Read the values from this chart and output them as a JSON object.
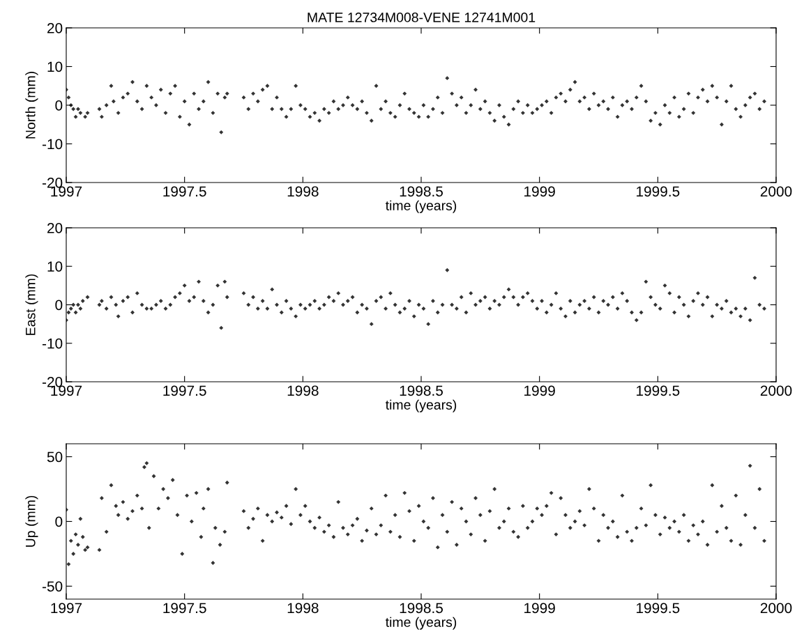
{
  "chart_data": [
    {
      "type": "scatter",
      "title": "MATE 12734M008-VENE 12741M001",
      "xlabel": "time (years)",
      "ylabel": "North (mm)",
      "marker": "diamond",
      "grid": false,
      "xlim": [
        1997,
        2000
      ],
      "ylim": [
        -20,
        20
      ],
      "xticks": [
        1997,
        1997.5,
        1998,
        1998.5,
        1999,
        1999.5,
        2000
      ],
      "yticks": [
        -20,
        -10,
        0,
        10,
        20
      ],
      "series": [
        {
          "color": "#333333",
          "x": [
            1997.0,
            1997.01,
            1997.02,
            1997.03,
            1997.04,
            1997.05,
            1997.06,
            1997.08,
            1997.09,
            1997.14,
            1997.15,
            1997.17,
            1997.19,
            1997.2,
            1997.22,
            1997.24,
            1997.26,
            1997.28,
            1997.3,
            1997.32,
            1997.34,
            1997.36,
            1997.38,
            1997.4,
            1997.42,
            1997.44,
            1997.46,
            1997.48,
            1997.5,
            1997.52,
            1997.54,
            1997.56,
            1997.58,
            1997.6,
            1997.62,
            1997.64,
            1997.655,
            1997.67,
            1997.68,
            1997.75,
            1997.77,
            1997.79,
            1997.81,
            1997.83,
            1997.85,
            1997.87,
            1997.89,
            1997.91,
            1997.93,
            1997.95,
            1997.97,
            1997.99,
            1998.01,
            1998.03,
            1998.05,
            1998.07,
            1998.09,
            1998.11,
            1998.13,
            1998.15,
            1998.17,
            1998.19,
            1998.21,
            1998.23,
            1998.25,
            1998.27,
            1998.29,
            1998.31,
            1998.33,
            1998.35,
            1998.37,
            1998.39,
            1998.41,
            1998.43,
            1998.45,
            1998.47,
            1998.49,
            1998.51,
            1998.53,
            1998.55,
            1998.57,
            1998.59,
            1998.61,
            1998.63,
            1998.65,
            1998.67,
            1998.69,
            1998.71,
            1998.73,
            1998.75,
            1998.77,
            1998.79,
            1998.81,
            1998.83,
            1998.85,
            1998.87,
            1998.89,
            1998.91,
            1998.93,
            1998.95,
            1998.97,
            1998.99,
            1999.01,
            1999.03,
            1999.05,
            1999.07,
            1999.09,
            1999.11,
            1999.13,
            1999.15,
            1999.17,
            1999.19,
            1999.21,
            1999.23,
            1999.25,
            1999.27,
            1999.29,
            1999.31,
            1999.33,
            1999.35,
            1999.37,
            1999.39,
            1999.41,
            1999.43,
            1999.45,
            1999.47,
            1999.49,
            1999.51,
            1999.53,
            1999.55,
            1999.57,
            1999.59,
            1999.61,
            1999.63,
            1999.65,
            1999.67,
            1999.69,
            1999.71,
            1999.73,
            1999.75,
            1999.77,
            1999.79,
            1999.81,
            1999.83,
            1999.85,
            1999.87,
            1999.89,
            1999.91,
            1999.93,
            1999.95
          ],
          "values": [
            4,
            2,
            0,
            -1,
            -3,
            -1,
            -2,
            -3,
            -2,
            -1,
            -3,
            0,
            5,
            1,
            -2,
            2,
            3,
            6,
            1,
            -1,
            5,
            2,
            0,
            4,
            -2,
            3,
            5,
            -3,
            1,
            -5,
            3,
            -1,
            1,
            6,
            -2,
            3,
            -7,
            2,
            3,
            2,
            -1,
            3,
            1,
            4,
            5,
            -1,
            2,
            -1,
            -3,
            -1,
            5,
            0,
            -1,
            -3,
            -2,
            -4,
            -1,
            -2,
            1,
            -1,
            0,
            2,
            0,
            -1,
            1,
            -2,
            -4,
            5,
            -1,
            1,
            -2,
            -3,
            0,
            3,
            -1,
            -2,
            -3,
            0,
            -3,
            -1,
            2,
            -2,
            7,
            3,
            0,
            2,
            -2,
            0,
            4,
            -1,
            1,
            -2,
            -4,
            0,
            -3,
            -5,
            -1,
            1,
            -2,
            0,
            -2,
            -1,
            0,
            1,
            -2,
            2,
            3,
            1,
            4,
            6,
            1,
            2,
            -1,
            3,
            0,
            1,
            -1,
            2,
            -3,
            0,
            1,
            -1,
            2,
            5,
            1,
            -4,
            -2,
            -5,
            0,
            -2,
            2,
            -3,
            -1,
            3,
            -2,
            2,
            4,
            1,
            5,
            2,
            -5,
            1,
            5,
            -1,
            -3,
            0,
            2,
            3,
            -1,
            1
          ]
        }
      ]
    },
    {
      "type": "scatter",
      "xlabel": "time (years)",
      "ylabel": "East (mm)",
      "marker": "diamond",
      "grid": false,
      "xlim": [
        1997,
        2000
      ],
      "ylim": [
        -20,
        20
      ],
      "xticks": [
        1997,
        1997.5,
        1998,
        1998.5,
        1999,
        1999.5,
        2000
      ],
      "yticks": [
        -20,
        -10,
        0,
        10,
        20
      ],
      "series": [
        {
          "color": "#333333",
          "x": [
            1997.0,
            1997.01,
            1997.02,
            1997.03,
            1997.04,
            1997.05,
            1997.06,
            1997.07,
            1997.09,
            1997.14,
            1997.15,
            1997.17,
            1997.19,
            1997.21,
            1997.22,
            1997.24,
            1997.26,
            1997.28,
            1997.3,
            1997.32,
            1997.34,
            1997.36,
            1997.38,
            1997.4,
            1997.42,
            1997.44,
            1997.46,
            1997.48,
            1997.5,
            1997.52,
            1997.54,
            1997.56,
            1997.58,
            1997.6,
            1997.62,
            1997.64,
            1997.655,
            1997.67,
            1997.68,
            1997.75,
            1997.77,
            1997.79,
            1997.81,
            1997.83,
            1997.85,
            1997.87,
            1997.89,
            1997.91,
            1997.93,
            1997.95,
            1997.97,
            1997.99,
            1998.01,
            1998.03,
            1998.05,
            1998.07,
            1998.09,
            1998.11,
            1998.13,
            1998.15,
            1998.17,
            1998.19,
            1998.21,
            1998.23,
            1998.25,
            1998.27,
            1998.29,
            1998.31,
            1998.33,
            1998.35,
            1998.37,
            1998.39,
            1998.41,
            1998.43,
            1998.45,
            1998.47,
            1998.49,
            1998.51,
            1998.53,
            1998.55,
            1998.57,
            1998.59,
            1998.61,
            1998.63,
            1998.65,
            1998.67,
            1998.69,
            1998.71,
            1998.73,
            1998.75,
            1998.77,
            1998.79,
            1998.81,
            1998.83,
            1998.85,
            1998.87,
            1998.89,
            1998.91,
            1998.93,
            1998.95,
            1998.97,
            1998.99,
            1999.01,
            1999.03,
            1999.05,
            1999.07,
            1999.09,
            1999.11,
            1999.13,
            1999.15,
            1999.17,
            1999.19,
            1999.21,
            1999.23,
            1999.25,
            1999.27,
            1999.29,
            1999.31,
            1999.33,
            1999.35,
            1999.37,
            1999.39,
            1999.41,
            1999.43,
            1999.45,
            1999.47,
            1999.49,
            1999.51,
            1999.53,
            1999.55,
            1999.57,
            1999.59,
            1999.61,
            1999.63,
            1999.65,
            1999.67,
            1999.69,
            1999.71,
            1999.73,
            1999.75,
            1999.77,
            1999.79,
            1999.81,
            1999.83,
            1999.85,
            1999.87,
            1999.89,
            1999.91,
            1999.93,
            1999.95
          ],
          "values": [
            -4,
            -2,
            -1,
            0,
            -2,
            0,
            -1,
            1,
            2,
            0,
            1,
            -1,
            2,
            0,
            -3,
            1,
            2,
            -2,
            3,
            0,
            -1,
            -1,
            0,
            1,
            -1,
            0,
            2,
            3,
            5,
            1,
            2,
            6,
            1,
            -2,
            0,
            5,
            -6,
            6,
            2,
            3,
            0,
            2,
            -1,
            1,
            -1,
            4,
            0,
            -2,
            1,
            -1,
            -3,
            0,
            -1,
            0,
            1,
            -1,
            0,
            2,
            1,
            3,
            0,
            1,
            2,
            -2,
            0,
            -1,
            -5,
            1,
            2,
            -1,
            3,
            0,
            -2,
            -1,
            1,
            -3,
            0,
            -1,
            -5,
            1,
            -2,
            0,
            9,
            0,
            -1,
            2,
            -2,
            3,
            0,
            1,
            2,
            -1,
            1,
            0,
            2,
            4,
            2,
            0,
            2,
            3,
            1,
            -1,
            1,
            -2,
            0,
            3,
            -1,
            -3,
            1,
            -2,
            0,
            1,
            -1,
            2,
            -2,
            1,
            0,
            2,
            -1,
            3,
            1,
            -2,
            -4,
            -2,
            6,
            2,
            0,
            -1,
            5,
            3,
            -2,
            2,
            0,
            -3,
            1,
            3,
            0,
            2,
            -3,
            0,
            -1,
            1,
            -2,
            -1,
            -3,
            -1,
            -4,
            7,
            0,
            -1
          ]
        }
      ]
    },
    {
      "type": "scatter",
      "xlabel": "time (years)",
      "ylabel": "Up (mm)",
      "marker": "diamond",
      "grid": false,
      "xlim": [
        1997,
        2000
      ],
      "ylim": [
        -60,
        60
      ],
      "xticks": [
        1997,
        1997.5,
        1998,
        1998.5,
        1999,
        1999.5,
        2000
      ],
      "yticks": [
        -50,
        0,
        50
      ],
      "series": [
        {
          "color": "#333333",
          "x": [
            1997.0,
            1997.01,
            1997.02,
            1997.03,
            1997.04,
            1997.05,
            1997.06,
            1997.07,
            1997.08,
            1997.09,
            1997.14,
            1997.15,
            1997.17,
            1997.19,
            1997.21,
            1997.22,
            1997.24,
            1997.26,
            1997.28,
            1997.3,
            1997.32,
            1997.33,
            1997.34,
            1997.35,
            1997.37,
            1997.39,
            1997.41,
            1997.43,
            1997.45,
            1997.47,
            1997.49,
            1997.51,
            1997.53,
            1997.55,
            1997.57,
            1997.58,
            1997.6,
            1997.62,
            1997.63,
            1997.65,
            1997.67,
            1997.68,
            1997.75,
            1997.77,
            1997.79,
            1997.81,
            1997.83,
            1997.85,
            1997.87,
            1997.89,
            1997.91,
            1997.93,
            1997.95,
            1997.97,
            1997.99,
            1998.01,
            1998.03,
            1998.05,
            1998.07,
            1998.09,
            1998.11,
            1998.13,
            1998.15,
            1998.17,
            1998.19,
            1998.21,
            1998.23,
            1998.25,
            1998.27,
            1998.29,
            1998.31,
            1998.33,
            1998.35,
            1998.37,
            1998.39,
            1998.41,
            1998.43,
            1998.45,
            1998.47,
            1998.49,
            1998.51,
            1998.53,
            1998.55,
            1998.57,
            1998.59,
            1998.61,
            1998.63,
            1998.65,
            1998.67,
            1998.69,
            1998.71,
            1998.73,
            1998.75,
            1998.77,
            1998.79,
            1998.81,
            1998.83,
            1998.85,
            1998.87,
            1998.89,
            1998.91,
            1998.93,
            1998.95,
            1998.97,
            1998.99,
            1999.01,
            1999.03,
            1999.05,
            1999.07,
            1999.09,
            1999.11,
            1999.13,
            1999.15,
            1999.17,
            1999.19,
            1999.21,
            1999.23,
            1999.25,
            1999.27,
            1999.29,
            1999.31,
            1999.33,
            1999.35,
            1999.37,
            1999.39,
            1999.41,
            1999.43,
            1999.45,
            1999.47,
            1999.49,
            1999.51,
            1999.53,
            1999.55,
            1999.57,
            1999.59,
            1999.61,
            1999.63,
            1999.65,
            1999.67,
            1999.69,
            1999.71,
            1999.73,
            1999.75,
            1999.77,
            1999.79,
            1999.81,
            1999.83,
            1999.85,
            1999.87,
            1999.89,
            1999.91,
            1999.93,
            1999.95
          ],
          "values": [
            9,
            -33,
            -15,
            -25,
            -10,
            -18,
            2,
            -12,
            -22,
            -20,
            -22,
            18,
            -8,
            28,
            12,
            5,
            15,
            2,
            8,
            20,
            10,
            42,
            45,
            -5,
            35,
            10,
            25,
            18,
            32,
            5,
            -25,
            20,
            0,
            22,
            -12,
            10,
            25,
            -32,
            -5,
            -18,
            -8,
            30,
            8,
            -5,
            2,
            10,
            -15,
            5,
            0,
            7,
            3,
            12,
            -2,
            25,
            5,
            12,
            0,
            -5,
            3,
            -8,
            -3,
            -12,
            15,
            -5,
            -10,
            -3,
            2,
            -15,
            -7,
            10,
            -10,
            -3,
            20,
            -8,
            5,
            -12,
            22,
            8,
            -15,
            12,
            0,
            -5,
            18,
            -20,
            5,
            -8,
            15,
            -18,
            10,
            0,
            -10,
            18,
            5,
            -15,
            8,
            25,
            -5,
            0,
            10,
            -8,
            -12,
            12,
            -5,
            0,
            10,
            5,
            12,
            22,
            -10,
            18,
            5,
            -5,
            0,
            8,
            -3,
            25,
            10,
            -15,
            5,
            -5,
            0,
            -12,
            20,
            -8,
            -15,
            -5,
            10,
            -3,
            28,
            5,
            -10,
            3,
            -5,
            0,
            -8,
            5,
            -15,
            -3,
            -10,
            0,
            -18,
            28,
            -8,
            12,
            -5,
            -15,
            20,
            -18,
            5,
            43,
            -5,
            25,
            -15
          ]
        }
      ]
    }
  ]
}
